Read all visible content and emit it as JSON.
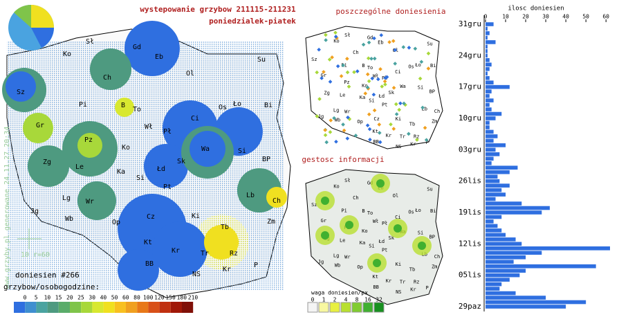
{
  "title": "wystepowanie grzybow 211115-211231",
  "subtitle": "poniedzialek-piatek",
  "reports_title": "poszczególne doniesienia",
  "density_title": "gestosc informacji",
  "regions": [
    "Ko",
    "Sł",
    "Gd",
    "Eb",
    "Su",
    "Ch",
    "Ol",
    "Sz",
    "Pi",
    "B",
    "To",
    "Os",
    "Ło",
    "Bi",
    "Gr",
    "Wł",
    "Ci",
    "Pł",
    "Pz",
    "Ko",
    "Si",
    "Zg",
    "Le",
    "Ka",
    "Wa",
    "Sk",
    "Łd",
    "BP",
    "Si",
    "Pt",
    "Lg",
    "Lb",
    "Ch",
    "Jg",
    "Wr",
    "Wb",
    "Cz",
    "Op",
    "Ki",
    "Zm",
    "Tb",
    "Kt",
    "Tr",
    "Rz",
    "Kr",
    "BB",
    "Kr",
    "NS",
    "P"
  ],
  "watermark": "www.grzyby.pl generowane 24.11.27 20:34",
  "scale_label": "10",
  "radius_label": "r=60",
  "report_count": "doniesien #266",
  "legend_title": "grzybow/osobogodzine:",
  "legend_values": [
    0,
    5,
    10,
    15,
    20,
    25,
    30,
    40,
    50,
    60,
    80,
    100,
    120,
    150,
    180,
    210
  ],
  "legend_colors": [
    "#2f6fe0",
    "#3f8fd0",
    "#4aa3a0",
    "#4e9a80",
    "#5aac6a",
    "#7fc44a",
    "#a8d83a",
    "#d8e830",
    "#f0e020",
    "#f8c020",
    "#f0a020",
    "#e87818",
    "#d85018",
    "#c03010",
    "#a01808",
    "#801008"
  ],
  "weight_title": "waga doniesien/px",
  "weight_values": [
    0,
    1,
    2,
    4,
    8,
    16,
    32
  ],
  "weight_colors": [
    "#f4f4f4",
    "#f8f8a0",
    "#e8f040",
    "#b8e030",
    "#80cc30",
    "#40b030",
    "#189020"
  ],
  "chart_data": {
    "type": "bar",
    "orientation": "horizontal",
    "title": "ilosc doniesien",
    "categories": [
      "29paz",
      null,
      null,
      null,
      null,
      null,
      null,
      "05lis",
      null,
      null,
      null,
      null,
      null,
      null,
      "12lis",
      null,
      null,
      null,
      null,
      null,
      null,
      "19lis",
      null,
      null,
      null,
      null,
      null,
      null,
      "26lis",
      null,
      null,
      null,
      null,
      null,
      null,
      "03gru",
      null,
      null,
      null,
      null,
      null,
      null,
      "10gru",
      null,
      null,
      null,
      null,
      null,
      null,
      "17gru",
      null,
      null,
      null,
      null,
      null,
      null,
      "24gru",
      null,
      null,
      null,
      null,
      null,
      null,
      "31gru"
    ],
    "values": [
      40,
      50,
      30,
      15,
      7,
      8,
      12,
      17,
      20,
      55,
      14,
      20,
      28,
      62,
      18,
      15,
      10,
      8,
      6,
      4,
      8,
      28,
      32,
      18,
      5,
      10,
      8,
      12,
      7,
      6,
      12,
      16,
      3,
      4,
      7,
      5,
      10,
      4,
      6,
      4,
      2,
      2,
      5,
      8,
      3,
      2,
      4,
      2,
      3,
      12,
      4,
      2,
      1,
      2,
      3,
      2,
      1,
      1,
      1,
      5,
      1,
      2,
      1,
      4
    ],
    "color": "#2f6fe0",
    "xlim": [
      0,
      62
    ],
    "xticks": [
      0,
      10,
      20,
      30,
      40,
      50,
      60
    ]
  }
}
